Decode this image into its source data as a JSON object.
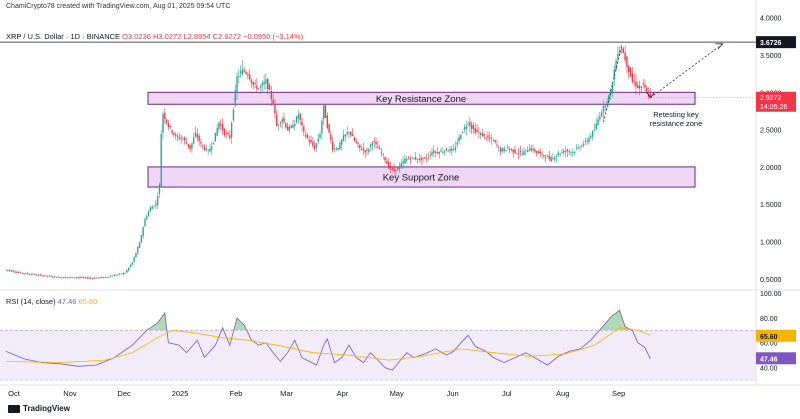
{
  "header": {
    "text": "ChamiCrypto78 created with TradingView.com, Aug 01, 2025 09:54 UTC"
  },
  "symbol": {
    "name": "XRP / U.S. Dollar · 1D · BINANCE",
    "ohlc": "O3.0236 H3.0272 L2.8954 C2.9272 −0.0950 (−3.14%)"
  },
  "rsi_label": {
    "prefix": "RSI (14, close)",
    "rsi": "47.46",
    "ma": "65.60"
  },
  "footer": {
    "brand": "TradingView"
  },
  "colors": {
    "up": "#26a69a",
    "down": "#f23645",
    "zone_fill": "#e8c8f0",
    "zone_border": "#6a2a7a",
    "rsi_line": "#7e57c2",
    "rsi_ma": "#f5b400",
    "rsi_band": "#ede7f6"
  },
  "chart_data": [
    {
      "type": "candlestick",
      "title": "XRP / U.S. Dollar · 1D · BINANCE",
      "x_ticks": [
        "Oct",
        "Nov",
        "Dec",
        "2025",
        "Feb",
        "Mar",
        "Apr",
        "May",
        "Jun",
        "Jul",
        "Aug",
        "Sep"
      ],
      "y_ticks": [
        "4.0000",
        "3.5000",
        "3.0000",
        "2.5000",
        "2.0000",
        "1.5000",
        "1.0000",
        "0.5000"
      ],
      "ylim": [
        0.35,
        4.05
      ],
      "last_price": "2.9272",
      "countdown": "14:05:26",
      "resistance_line": {
        "value": 3.6726,
        "label": "3.6726"
      },
      "zones": [
        {
          "name": "Key Resistance Zone",
          "low": 2.84,
          "high": 3.0
        },
        {
          "name": "Key Support Zone",
          "low": 1.73,
          "high": 2.0
        }
      ],
      "annotation": [
        "Retesting key",
        "resistance zone"
      ],
      "price_path": [
        [
          0,
          0.62
        ],
        [
          8,
          0.58
        ],
        [
          18,
          0.55
        ],
        [
          30,
          0.52
        ],
        [
          40,
          0.52
        ],
        [
          48,
          0.51
        ],
        [
          55,
          0.52
        ],
        [
          60,
          0.55
        ],
        [
          66,
          0.58
        ],
        [
          70,
          0.72
        ],
        [
          74,
          0.98
        ],
        [
          77,
          1.3
        ],
        [
          80,
          1.45
        ],
        [
          83,
          1.5
        ],
        [
          85,
          1.75
        ],
        [
          86,
          2.45
        ],
        [
          87,
          2.72
        ],
        [
          90,
          2.55
        ],
        [
          94,
          2.4
        ],
        [
          98,
          2.38
        ],
        [
          102,
          2.25
        ],
        [
          105,
          2.45
        ],
        [
          108,
          2.3
        ],
        [
          112,
          2.2
        ],
        [
          115,
          2.35
        ],
        [
          118,
          2.6
        ],
        [
          121,
          2.45
        ],
        [
          124,
          2.4
        ],
        [
          126,
          2.8
        ],
        [
          128,
          3.2
        ],
        [
          131,
          3.3
        ],
        [
          134,
          3.25
        ],
        [
          137,
          3.1
        ],
        [
          140,
          3.05
        ],
        [
          144,
          3.15
        ],
        [
          146,
          3.0
        ],
        [
          148,
          2.85
        ],
        [
          150,
          2.55
        ],
        [
          153,
          2.65
        ],
        [
          156,
          2.5
        ],
        [
          159,
          2.55
        ],
        [
          162,
          2.7
        ],
        [
          165,
          2.45
        ],
        [
          168,
          2.35
        ],
        [
          171,
          2.25
        ],
        [
          174,
          2.45
        ],
        [
          176,
          2.8
        ],
        [
          178,
          2.55
        ],
        [
          181,
          2.25
        ],
        [
          184,
          2.25
        ],
        [
          187,
          2.4
        ],
        [
          190,
          2.48
        ],
        [
          193,
          2.35
        ],
        [
          196,
          2.25
        ],
        [
          200,
          2.2
        ],
        [
          203,
          2.35
        ],
        [
          206,
          2.25
        ],
        [
          209,
          2.15
        ],
        [
          212,
          2.0
        ],
        [
          215,
          1.95
        ],
        [
          218,
          2.0
        ],
        [
          221,
          2.1
        ],
        [
          225,
          2.12
        ],
        [
          229,
          2.1
        ],
        [
          233,
          2.12
        ],
        [
          236,
          2.2
        ],
        [
          240,
          2.2
        ],
        [
          244,
          2.23
        ],
        [
          248,
          2.22
        ],
        [
          252,
          2.45
        ],
        [
          256,
          2.6
        ],
        [
          259,
          2.5
        ],
        [
          262,
          2.45
        ],
        [
          266,
          2.4
        ],
        [
          270,
          2.35
        ],
        [
          274,
          2.22
        ],
        [
          278,
          2.25
        ],
        [
          282,
          2.2
        ],
        [
          286,
          2.18
        ],
        [
          290,
          2.25
        ],
        [
          294,
          2.2
        ],
        [
          298,
          2.15
        ],
        [
          302,
          2.1
        ],
        [
          306,
          2.18
        ],
        [
          310,
          2.22
        ],
        [
          314,
          2.2
        ],
        [
          318,
          2.28
        ],
        [
          322,
          2.35
        ],
        [
          326,
          2.5
        ],
        [
          329,
          2.7
        ],
        [
          332,
          2.85
        ],
        [
          335,
          3.0
        ],
        [
          337,
          3.3
        ],
        [
          339,
          3.55
        ],
        [
          341,
          3.6
        ],
        [
          343,
          3.45
        ],
        [
          345,
          3.3
        ],
        [
          347,
          3.15
        ],
        [
          349,
          3.1
        ],
        [
          351,
          3.05
        ],
        [
          353,
          3.1
        ],
        [
          355,
          3.0
        ],
        [
          357,
          2.93
        ]
      ]
    },
    {
      "type": "line",
      "title": "RSI (14, close)",
      "y_ticks": [
        "100.00",
        "80.00",
        "60.00",
        "40.00"
      ],
      "ylim": [
        30,
        100
      ],
      "band": [
        30,
        70
      ],
      "last_values": {
        "rsi": "47.46",
        "ma": "65.60"
      },
      "series": [
        {
          "name": "RSI",
          "values": [
            [
              0,
              53
            ],
            [
              10,
              47
            ],
            [
              20,
              44
            ],
            [
              30,
              43
            ],
            [
              40,
              41
            ],
            [
              50,
              42
            ],
            [
              60,
              48
            ],
            [
              70,
              58
            ],
            [
              78,
              70
            ],
            [
              84,
              76
            ],
            [
              88,
              84
            ],
            [
              90,
              60
            ],
            [
              96,
              58
            ],
            [
              100,
              52
            ],
            [
              106,
              62
            ],
            [
              110,
              48
            ],
            [
              116,
              58
            ],
            [
              120,
              72
            ],
            [
              124,
              58
            ],
            [
              128,
              80
            ],
            [
              132,
              74
            ],
            [
              136,
              62
            ],
            [
              140,
              58
            ],
            [
              144,
              60
            ],
            [
              148,
              52
            ],
            [
              152,
              45
            ],
            [
              156,
              52
            ],
            [
              160,
              62
            ],
            [
              164,
              48
            ],
            [
              168,
              45
            ],
            [
              172,
              42
            ],
            [
              176,
              58
            ],
            [
              178,
              63
            ],
            [
              182,
              44
            ],
            [
              186,
              48
            ],
            [
              190,
              58
            ],
            [
              194,
              48
            ],
            [
              198,
              44
            ],
            [
              202,
              52
            ],
            [
              206,
              46
            ],
            [
              210,
              40
            ],
            [
              214,
              38
            ],
            [
              218,
              45
            ],
            [
              222,
              52
            ],
            [
              226,
              48
            ],
            [
              232,
              51
            ],
            [
              238,
              55
            ],
            [
              244,
              50
            ],
            [
              248,
              53
            ],
            [
              252,
              60
            ],
            [
              256,
              66
            ],
            [
              260,
              57
            ],
            [
              266,
              53
            ],
            [
              270,
              48
            ],
            [
              276,
              44
            ],
            [
              282,
              48
            ],
            [
              288,
              52
            ],
            [
              294,
              47
            ],
            [
              300,
              42
            ],
            [
              306,
              49
            ],
            [
              312,
              53
            ],
            [
              318,
              55
            ],
            [
              324,
              62
            ],
            [
              330,
              72
            ],
            [
              336,
              82
            ],
            [
              340,
              86
            ],
            [
              343,
              73
            ],
            [
              347,
              70
            ],
            [
              350,
              60
            ],
            [
              354,
              56
            ],
            [
              357,
              47
            ]
          ]
        },
        {
          "name": "RSI-based MA",
          "values": [
            [
              0,
              45
            ],
            [
              30,
              44
            ],
            [
              55,
              46
            ],
            [
              70,
              52
            ],
            [
              84,
              64
            ],
            [
              92,
              70
            ],
            [
              104,
              68
            ],
            [
              120,
              64
            ],
            [
              134,
              62
            ],
            [
              150,
              58
            ],
            [
              170,
              52
            ],
            [
              190,
              50
            ],
            [
              212,
              46
            ],
            [
              230,
              49
            ],
            [
              252,
              55
            ],
            [
              270,
              52
            ],
            [
              290,
              49
            ],
            [
              310,
              51
            ],
            [
              326,
              58
            ],
            [
              340,
              72
            ],
            [
              350,
              70
            ],
            [
              357,
              66
            ]
          ]
        }
      ]
    }
  ]
}
